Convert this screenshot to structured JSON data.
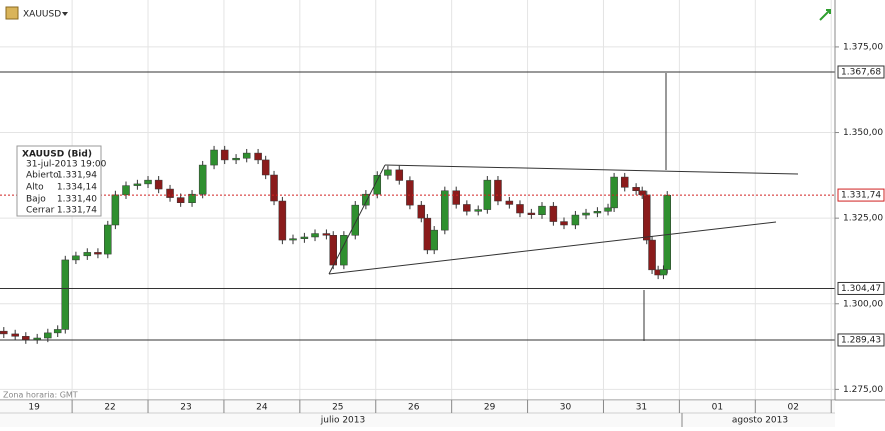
{
  "header": {
    "symbol": "XAUUSD"
  },
  "chart_data": {
    "type": "candlestick",
    "x": [
      -0.4,
      -0.25,
      -0.11,
      0.04,
      0.18,
      0.31,
      0.41,
      0.55,
      0.7,
      0.84,
      0.97,
      1.07,
      1.21,
      1.36,
      1.5,
      1.64,
      1.79,
      1.93,
      2.08,
      2.22,
      2.37,
      2.51,
      2.66,
      2.8,
      2.95,
      3.05,
      3.16,
      3.27,
      3.41,
      3.56,
      3.7,
      3.85,
      3.94,
      4.08,
      4.23,
      4.37,
      4.52,
      4.66,
      4.81,
      4.95,
      5.1,
      5.18,
      5.27,
      5.41,
      5.56,
      5.7,
      5.85,
      5.97,
      6.11,
      6.26,
      6.4,
      6.55,
      6.69,
      6.84,
      6.98,
      7.13,
      7.27,
      7.42,
      7.56,
      7.64,
      7.78,
      7.93,
      8.01,
      8.07,
      8.14,
      8.22,
      8.29,
      8.34
    ],
    "open": [
      1.292,
      1.2912,
      1.2905,
      1.2895,
      1.29,
      1.2915,
      1.2925,
      1.3128,
      1.314,
      1.315,
      1.3145,
      1.323,
      1.3318,
      1.3345,
      1.335,
      1.3361,
      1.3335,
      1.331,
      1.3295,
      1.332,
      1.3405,
      1.3449,
      1.342,
      1.3425,
      1.344,
      1.342,
      1.3376,
      1.33,
      1.3186,
      1.319,
      1.3195,
      1.3205,
      1.32,
      1.3113,
      1.32,
      1.3288,
      1.332,
      1.3375,
      1.3391,
      1.336,
      1.3288,
      1.325,
      1.3157,
      1.3215,
      1.333,
      1.329,
      1.327,
      1.3275,
      1.3361,
      1.33,
      1.329,
      1.3265,
      1.326,
      1.3285,
      1.324,
      1.323,
      1.3259,
      1.3265,
      1.327,
      1.328,
      1.337,
      1.334,
      1.333,
      1.3318,
      1.3186,
      1.3099,
      1.3084,
      1.31
    ],
    "high": [
      1.2932,
      1.2924,
      1.2917,
      1.2912,
      1.2927,
      1.2937,
      1.314,
      1.3152,
      1.3162,
      1.3162,
      1.3242,
      1.333,
      1.3357,
      1.3362,
      1.3373,
      1.3373,
      1.3347,
      1.3322,
      1.3332,
      1.3417,
      1.3461,
      1.3461,
      1.3437,
      1.3452,
      1.3452,
      1.3432,
      1.3388,
      1.3312,
      1.3202,
      1.3207,
      1.3217,
      1.3217,
      1.3212,
      1.3212,
      1.33,
      1.3332,
      1.3387,
      1.3403,
      1.3403,
      1.3372,
      1.33,
      1.3262,
      1.3227,
      1.3342,
      1.3342,
      1.3302,
      1.3287,
      1.3373,
      1.3373,
      1.3312,
      1.3302,
      1.3277,
      1.3297,
      1.3297,
      1.3252,
      1.3271,
      1.3277,
      1.3282,
      1.3292,
      1.3382,
      1.3382,
      1.3352,
      1.3342,
      1.333,
      1.3198,
      1.3111,
      1.3112,
      1.3329
    ],
    "low": [
      1.29,
      1.2893,
      1.2883,
      1.2883,
      1.2888,
      1.2903,
      1.2913,
      1.3116,
      1.3128,
      1.3133,
      1.3133,
      1.3218,
      1.3306,
      1.3333,
      1.3338,
      1.3323,
      1.3298,
      1.3283,
      1.3283,
      1.3308,
      1.3393,
      1.3408,
      1.3408,
      1.3413,
      1.3408,
      1.3364,
      1.3288,
      1.3174,
      1.3174,
      1.3178,
      1.3183,
      1.3188,
      1.3101,
      1.3101,
      1.3188,
      1.3276,
      1.3308,
      1.3363,
      1.3348,
      1.3276,
      1.3238,
      1.3145,
      1.3145,
      1.3203,
      1.3278,
      1.3258,
      1.3258,
      1.3263,
      1.3288,
      1.3278,
      1.3253,
      1.3248,
      1.3248,
      1.3228,
      1.3218,
      1.3218,
      1.3247,
      1.3253,
      1.3258,
      1.3268,
      1.3328,
      1.3318,
      1.3306,
      1.3174,
      1.3087,
      1.3072,
      1.3072,
      1.3088
    ],
    "close": [
      1.2912,
      1.2905,
      1.2895,
      1.29,
      1.2915,
      1.2925,
      1.3128,
      1.314,
      1.315,
      1.3145,
      1.323,
      1.3318,
      1.3345,
      1.335,
      1.3361,
      1.3335,
      1.331,
      1.3295,
      1.332,
      1.3405,
      1.3449,
      1.342,
      1.3425,
      1.344,
      1.342,
      1.3376,
      1.33,
      1.3186,
      1.319,
      1.3195,
      1.3205,
      1.32,
      1.3113,
      1.32,
      1.3288,
      1.332,
      1.3375,
      1.3391,
      1.336,
      1.3288,
      1.325,
      1.3157,
      1.3215,
      1.333,
      1.329,
      1.327,
      1.3275,
      1.3361,
      1.33,
      1.329,
      1.3265,
      1.326,
      1.3285,
      1.324,
      1.323,
      1.3259,
      1.3265,
      1.327,
      1.328,
      1.337,
      1.334,
      1.333,
      1.3318,
      1.3186,
      1.3099,
      1.3084,
      1.31,
      1.3317
    ],
    "categories": [
      "19",
      "22",
      "23",
      "24",
      "25",
      "26",
      "29",
      "30",
      "31",
      "01",
      "02"
    ],
    "months": [
      "julio 2013",
      "agosto 2013"
    ],
    "xlim": [
      -0.45,
      10.55
    ],
    "ylim": [
      1.2719,
      1.3887
    ],
    "yticks": [
      {
        "value": 1.275,
        "label": "1.275,00"
      },
      {
        "value": 1.3,
        "label": "1.300,00"
      },
      {
        "value": 1.325,
        "label": "1.325,00"
      },
      {
        "value": 1.35,
        "label": "1.350,00"
      },
      {
        "value": 1.375,
        "label": "1.375,00"
      }
    ],
    "grid": true,
    "up_color": "#2f8f2f",
    "down_color": "#8a1b1b",
    "levels": [
      {
        "value": 1.36768,
        "label": "1.367,68",
        "color": "#333333",
        "dashed": false
      },
      {
        "value": 1.30447,
        "label": "1.304,47",
        "color": "#333333",
        "dashed": false
      },
      {
        "value": 1.28943,
        "label": "1.289,43",
        "color": "#333333",
        "dashed": false
      },
      {
        "value": 1.33174,
        "label": "1.331,74",
        "color": "#d02020",
        "dashed": true
      }
    ],
    "timezone": "Zona horaria: GMT"
  },
  "info_box": {
    "title": "XAUUSD (Bid)",
    "time": "31-jul-2013 19:00",
    "rows": [
      [
        "Abierto",
        "1.331,94"
      ],
      [
        "Alto",
        "1.334,14"
      ],
      [
        "Bajo",
        "1.331,40"
      ],
      [
        "Cerrar",
        "1.331,74"
      ]
    ]
  }
}
